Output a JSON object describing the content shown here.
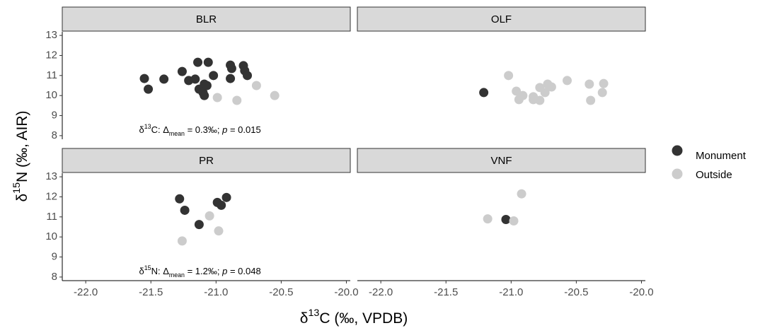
{
  "x_label": [
    {
      "text": "δ"
    },
    {
      "text": "13",
      "sup": true
    },
    {
      "text": "C (‰, VPDB)"
    }
  ],
  "y_label": [
    {
      "text": "δ"
    },
    {
      "text": "15",
      "sup": true
    },
    {
      "text": "N (‰, AIR)"
    }
  ],
  "legend": "right",
  "chart_data": [
    {
      "type": "scatter",
      "title": "BLR",
      "xlim": [
        -22.18,
        -19.97
      ],
      "ylim": [
        7.82,
        13.18
      ],
      "yticks": [
        8,
        9,
        10,
        11,
        12,
        13
      ],
      "annotation": [
        {
          "text": "δ"
        },
        {
          "text": "13",
          "sup": true
        },
        {
          "text": "C: Δ"
        },
        {
          "text": "mean",
          "sub": true
        },
        {
          "text": " = 0.3‰; "
        },
        {
          "text": "p",
          "italic": true
        },
        {
          "text": " = 0.015"
        }
      ],
      "series": [
        {
          "name": "Monument",
          "color": "#333333",
          "x": [
            -21.55,
            -21.52,
            -21.4,
            -21.26,
            -21.21,
            -21.14,
            -21.16,
            -21.13,
            -21.09,
            -21.1,
            -21.09,
            -21.07,
            -21.06,
            -21.02,
            -20.89,
            -20.89,
            -20.88,
            -20.79,
            -20.78,
            -20.76
          ],
          "values": [
            10.85,
            10.32,
            10.82,
            11.2,
            10.75,
            11.66,
            10.82,
            10.32,
            10.57,
            10.15,
            10.0,
            10.5,
            11.66,
            11.0,
            10.85,
            11.52,
            11.35,
            11.49,
            11.24,
            11.0
          ]
        },
        {
          "name": "Outside",
          "color": "#cccccc",
          "x": [
            -20.99,
            -20.84,
            -20.69,
            -20.55
          ],
          "values": [
            9.9,
            9.76,
            10.5,
            10.0
          ]
        }
      ]
    },
    {
      "type": "scatter",
      "title": "OLF",
      "xlim": [
        -22.18,
        -19.97
      ],
      "ylim": [
        7.82,
        13.18
      ],
      "series": [
        {
          "name": "Monument",
          "color": "#333333",
          "x": [
            -21.21
          ],
          "values": [
            10.15
          ]
        },
        {
          "name": "Outside",
          "color": "#cccccc",
          "x": [
            -21.02,
            -20.96,
            -20.94,
            -20.91,
            -20.83,
            -20.83,
            -20.78,
            -20.78,
            -20.74,
            -20.72,
            -20.69,
            -20.57,
            -20.4,
            -20.39,
            -20.3,
            -20.29
          ],
          "values": [
            11.0,
            10.22,
            9.8,
            10.0,
            9.8,
            9.94,
            9.76,
            10.4,
            10.15,
            10.57,
            10.43,
            10.75,
            10.57,
            9.76,
            10.15,
            10.6
          ]
        }
      ]
    },
    {
      "type": "scatter",
      "title": "PR",
      "xlim": [
        -22.18,
        -19.97
      ],
      "ylim": [
        7.82,
        13.18
      ],
      "yticks": [
        8,
        9,
        10,
        11,
        12,
        13
      ],
      "xticks": [
        {
          "value": -22,
          "label": "-22.0"
        },
        {
          "value": -21.5,
          "label": "-21.5"
        },
        {
          "value": -21,
          "label": "-21.0"
        },
        {
          "value": -20.5,
          "label": "-20.5"
        },
        {
          "value": -20,
          "label": "-20.0"
        }
      ],
      "annotation": [
        {
          "text": "δ"
        },
        {
          "text": "15",
          "sup": true
        },
        {
          "text": "N: Δ"
        },
        {
          "text": "mean",
          "sub": true
        },
        {
          "text": " = 1.2‰; "
        },
        {
          "text": "p",
          "italic": true
        },
        {
          "text": " = 0.048"
        }
      ],
      "series": [
        {
          "name": "Monument",
          "color": "#333333",
          "x": [
            -21.28,
            -21.24,
            -21.13,
            -20.99,
            -20.96,
            -20.92
          ],
          "values": [
            11.9,
            11.33,
            10.62,
            11.72,
            11.58,
            11.97
          ]
        },
        {
          "name": "Outside",
          "color": "#cccccc",
          "x": [
            -21.26,
            -21.05,
            -20.98
          ],
          "values": [
            9.8,
            11.05,
            10.3
          ]
        }
      ]
    },
    {
      "type": "scatter",
      "title": "VNF",
      "xlim": [
        -22.18,
        -19.97
      ],
      "ylim": [
        7.82,
        13.18
      ],
      "xticks": [
        {
          "value": -22,
          "label": "-22.0"
        },
        {
          "value": -21.5,
          "label": "-21.5"
        },
        {
          "value": -21,
          "label": "-21.0"
        },
        {
          "value": -20.5,
          "label": "-20.5"
        },
        {
          "value": -20,
          "label": "-20.0"
        }
      ],
      "series": [
        {
          "name": "Monument",
          "color": "#333333",
          "x": [
            -21.04
          ],
          "values": [
            10.87
          ]
        },
        {
          "name": "Outside",
          "color": "#cccccc",
          "x": [
            -21.18,
            -20.98,
            -20.92
          ],
          "values": [
            10.9,
            10.8,
            12.15
          ]
        }
      ]
    }
  ]
}
